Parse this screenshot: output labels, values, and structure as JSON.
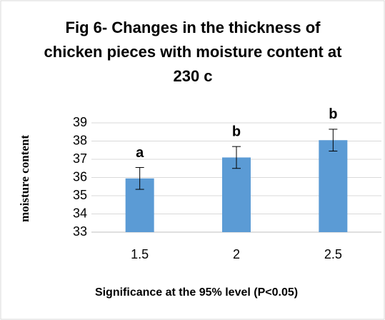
{
  "chart_data": {
    "type": "bar",
    "title": "Fig 6- Changes in the thickness of chicken pieces with moisture content at 230 c",
    "xlabel": "Significance at the 95% level (P<0.05)",
    "ylabel": "moisture content",
    "categories": [
      "1.5",
      "2",
      "2.5"
    ],
    "values": [
      35.95,
      37.1,
      38.05
    ],
    "errors": [
      0.6,
      0.6,
      0.6
    ],
    "annotations": [
      "a",
      "b",
      "b"
    ],
    "color": "#5b9bd5",
    "ylim": [
      33,
      39
    ],
    "yticks": [
      33,
      34,
      35,
      36,
      37,
      38,
      39
    ],
    "grid": true
  }
}
